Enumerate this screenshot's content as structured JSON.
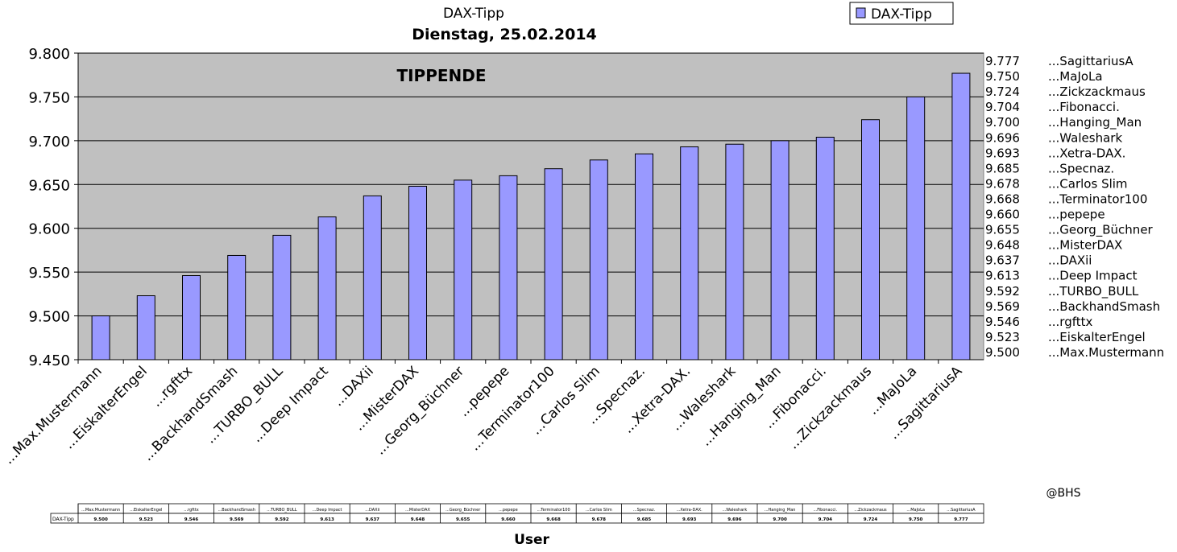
{
  "chart_data": {
    "type": "bar",
    "title": "DAX-Tipp",
    "subtitle": "Dienstag, 25.02.2014",
    "xlabel": "User",
    "ylabel": "",
    "ylim": [
      9.45,
      9.8
    ],
    "yticks": [
      "9.450",
      "9.500",
      "9.550",
      "9.600",
      "9.650",
      "9.700",
      "9.750",
      "9.800"
    ],
    "grid": true,
    "legend": {
      "position": "top-right",
      "entries": [
        "DAX-Tipp"
      ]
    },
    "annotation": "TIPPENDE",
    "credit": "@BHS",
    "colors": {
      "bar": "#9999ff",
      "plot_background": "#c0c0c0"
    },
    "categories": [
      "...Max.Mustermann",
      "...EiskalterEngel",
      "...rgfttx",
      "...BackhandSmash",
      "...TURBO_BULL",
      "...Deep Impact",
      "...DAXii",
      "...MisterDAX",
      "...Georg_Büchner",
      "...pepepe",
      "...Terminator100",
      "...Carlos Slim",
      "...Specnaz.",
      "...Xetra-DAX.",
      "...Waleshark",
      "...Hanging_Man",
      "...Fibonacci.",
      "...Zickzackmaus",
      "...MaJoLa",
      "...SagittariusA"
    ],
    "series": [
      {
        "name": "DAX-Tipp",
        "values": [
          9.5,
          9.523,
          9.546,
          9.569,
          9.592,
          9.613,
          9.637,
          9.648,
          9.655,
          9.66,
          9.668,
          9.678,
          9.685,
          9.693,
          9.696,
          9.7,
          9.704,
          9.724,
          9.75,
          9.777
        ]
      }
    ],
    "value_labels": [
      "9.500",
      "9.523",
      "9.546",
      "9.569",
      "9.592",
      "9.613",
      "9.637",
      "9.648",
      "9.655",
      "9.660",
      "9.668",
      "9.678",
      "9.685",
      "9.693",
      "9.696",
      "9.700",
      "9.704",
      "9.724",
      "9.750",
      "9.777"
    ],
    "table": {
      "row_header": "DAX-Tipp"
    }
  }
}
